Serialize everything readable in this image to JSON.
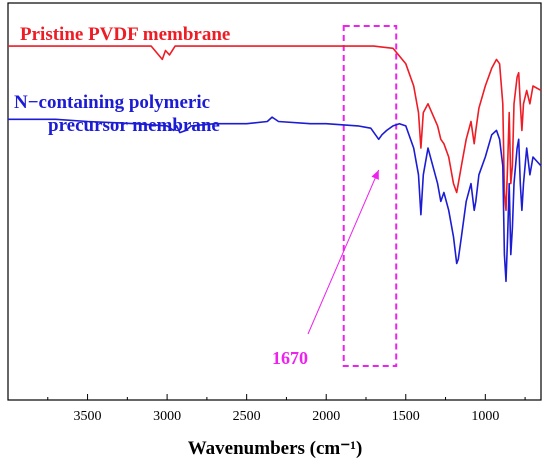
{
  "chart_data": {
    "type": "line",
    "xlabel": "Wavenumbers (cm⁻¹)",
    "ylabel": "",
    "xlim": [
      4000,
      650
    ],
    "x_reversed": true,
    "x_ticks": [
      3500,
      3000,
      2500,
      2000,
      1500,
      1000
    ],
    "grid": false,
    "series": [
      {
        "name": "Pristine PVDF membrane",
        "label_lines": [
          "Pristine PVDF membrane"
        ],
        "color": "#ee1c25",
        "x": [
          4000,
          3500,
          3100,
          3030,
          3010,
          2985,
          2950,
          2500,
          2000,
          1700,
          1580,
          1500,
          1450,
          1420,
          1405,
          1390,
          1360,
          1300,
          1280,
          1260,
          1230,
          1200,
          1180,
          1170,
          1150,
          1120,
          1090,
          1070,
          1060,
          1040,
          1000,
          960,
          930,
          910,
          890,
          880,
          870,
          860,
          850,
          840,
          830,
          820,
          800,
          790,
          780,
          770,
          760,
          740,
          720,
          700,
          650
        ],
        "y": [
          93,
          93,
          93,
          90,
          92,
          91,
          93,
          93,
          93,
          93,
          92.5,
          89,
          84,
          78,
          70,
          78,
          80,
          75,
          72,
          71,
          68,
          62,
          60,
          62,
          66,
          72,
          76,
          71,
          74,
          79,
          84,
          88,
          90,
          89,
          80,
          60,
          56,
          66,
          78,
          62,
          66,
          80,
          86,
          87,
          80,
          74,
          80,
          83,
          80,
          84,
          83
        ]
      },
      {
        "name": "N-containing polymeric precursor membrane",
        "label_lines": [
          "N−containing polymeric",
          "precursor membrane"
        ],
        "color": "#1c1cd4",
        "x": [
          4000,
          3700,
          3500,
          3200,
          3000,
          2960,
          2940,
          2920,
          2880,
          2850,
          2700,
          2500,
          2370,
          2340,
          2300,
          2100,
          2000,
          1800,
          1720,
          1690,
          1670,
          1650,
          1620,
          1580,
          1540,
          1500,
          1450,
          1420,
          1405,
          1390,
          1360,
          1300,
          1280,
          1260,
          1230,
          1200,
          1180,
          1170,
          1150,
          1120,
          1090,
          1070,
          1060,
          1040,
          1000,
          960,
          930,
          910,
          890,
          880,
          870,
          860,
          850,
          840,
          830,
          820,
          800,
          790,
          780,
          770,
          760,
          740,
          720,
          700,
          650
        ],
        "y": [
          76.5,
          76.5,
          76,
          75.5,
          75,
          74,
          75,
          73.5,
          74,
          75,
          75.5,
          75.5,
          76,
          77,
          76,
          75.5,
          75.5,
          75,
          74.5,
          73,
          72,
          73,
          74,
          75,
          75.5,
          75,
          70,
          64,
          55,
          64,
          70,
          62,
          58,
          60,
          56,
          50,
          44,
          45,
          50,
          58,
          62,
          56,
          58,
          64,
          68,
          73,
          74,
          72,
          66,
          46,
          40,
          50,
          62,
          46,
          52,
          62,
          70,
          72,
          62,
          56,
          62,
          70,
          64,
          68,
          66
        ]
      }
    ],
    "annotations": [
      {
        "text": "1670",
        "points_to_x": 1670,
        "color": "#ee22ee"
      }
    ],
    "highlight_box": {
      "x_range": [
        1890,
        1560
      ],
      "color": "#ee22ee",
      "style": "dashed"
    }
  }
}
